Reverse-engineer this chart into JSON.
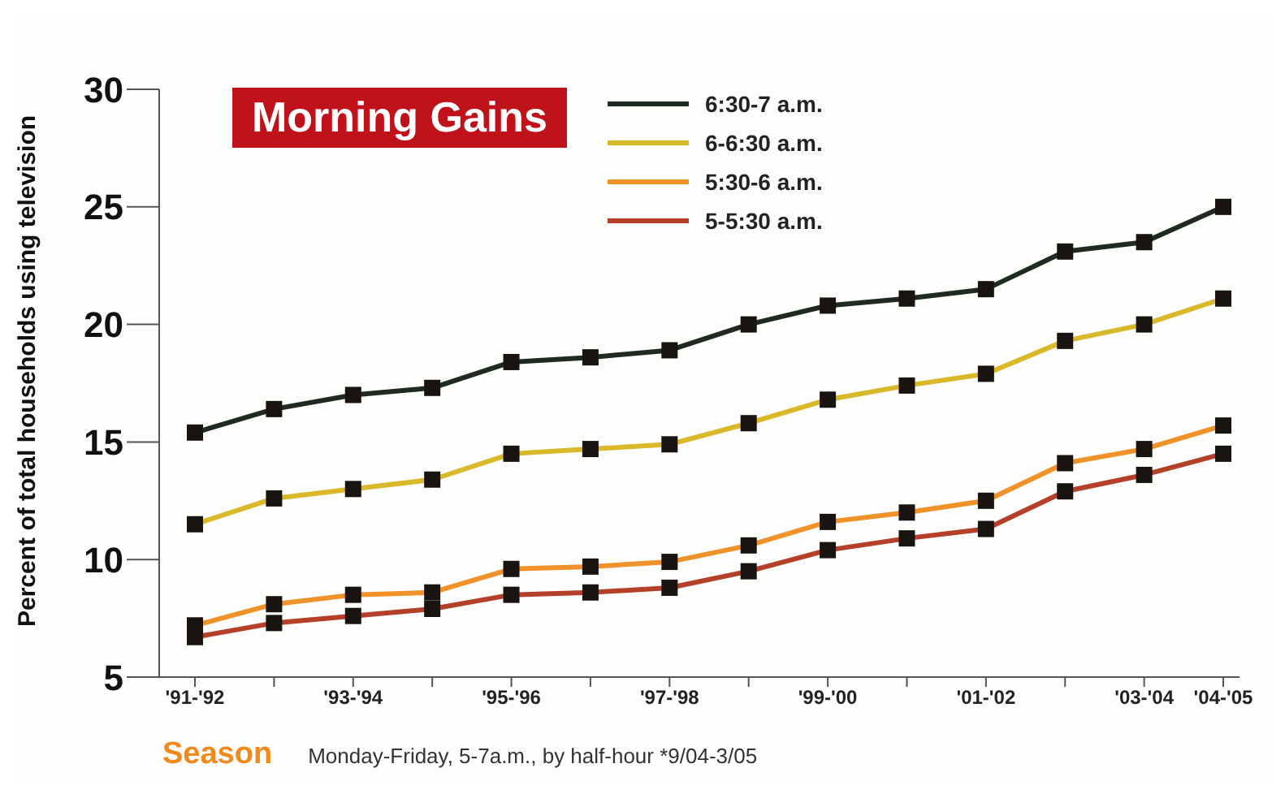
{
  "chart_data": {
    "type": "line",
    "title": "Morning Gains",
    "xlabel": "Season",
    "ylabel": "Percent of total households using television",
    "annotations": [
      "Monday-Friday, 5-7a.m., by half-hour *9/04-3/05"
    ],
    "categories": [
      "'91-'92",
      null,
      "'93-'94",
      null,
      "'95-'96",
      null,
      "'97-'98",
      null,
      "'99-'00",
      null,
      "'01-'02",
      null,
      "'03-'04",
      "'04-'05"
    ],
    "series": [
      {
        "name": "6:30-7 a.m.",
        "color": "#1e2a22",
        "values": [
          15.4,
          16.4,
          17.0,
          17.3,
          18.4,
          18.6,
          18.9,
          20.0,
          20.8,
          21.1,
          21.5,
          23.1,
          23.5,
          25.0
        ]
      },
      {
        "name": "6-6:30 a.m.",
        "color": "#d9b82a",
        "values": [
          11.5,
          12.6,
          13.0,
          13.4,
          14.5,
          14.7,
          14.9,
          15.8,
          16.8,
          17.4,
          17.9,
          19.3,
          20.0,
          21.1
        ]
      },
      {
        "name": "5:30-6 a.m.",
        "color": "#f0922a",
        "values": [
          7.2,
          8.1,
          8.5,
          8.6,
          9.6,
          9.7,
          9.9,
          10.6,
          11.6,
          12.0,
          12.5,
          14.1,
          14.7,
          15.7
        ]
      },
      {
        "name": "5-5:30 a.m.",
        "color": "#b5402a",
        "values": [
          6.7,
          7.3,
          7.6,
          7.9,
          8.5,
          8.6,
          8.8,
          9.5,
          10.4,
          10.9,
          11.3,
          12.9,
          13.6,
          14.5
        ]
      }
    ],
    "ylim": [
      5,
      30
    ],
    "yticks": [
      5,
      10,
      15,
      20,
      25,
      30
    ],
    "grid": false,
    "legend": "top right",
    "marker": "square",
    "line_style": "solid"
  }
}
